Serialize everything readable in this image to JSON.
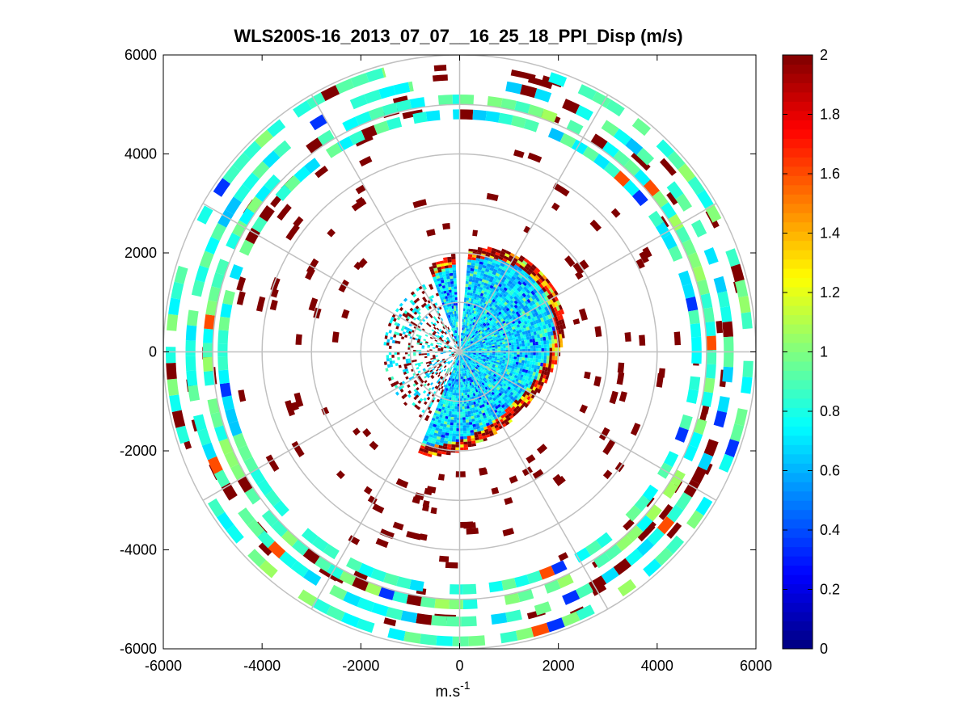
{
  "chart_data": {
    "type": "heatmap",
    "subtype": "polar-ppi",
    "title": "WLS200S-16_2013_07_07__16_25_18_PPI_Disp (m/s)",
    "xlabel": "m.s",
    "xlabel_superscript": "-1",
    "ylabel": "",
    "xlim": [
      -6000,
      6000
    ],
    "ylim": [
      -6000,
      6000
    ],
    "x_ticks": [
      -6000,
      -4000,
      -2000,
      0,
      2000,
      4000,
      6000
    ],
    "y_ticks": [
      -6000,
      -4000,
      -2000,
      0,
      2000,
      4000,
      6000
    ],
    "x_tick_labels": [
      "-6000",
      "-4000",
      "-2000",
      "0",
      "2000",
      "4000",
      "6000"
    ],
    "y_tick_labels": [
      "-6000",
      "-4000",
      "-2000",
      "0",
      "2000",
      "4000",
      "6000"
    ],
    "polar_grid": {
      "ring_radii": [
        1000,
        2000,
        3000,
        4000,
        5000,
        6000
      ],
      "spoke_angles_deg": [
        0,
        30,
        60,
        90,
        120,
        150,
        180,
        210,
        240,
        270,
        300,
        330
      ]
    },
    "colorbar": {
      "colormap": "jet",
      "range": [
        0,
        2
      ],
      "ticks": [
        0,
        0.2,
        0.4,
        0.6,
        0.8,
        1,
        1.2,
        1.4,
        1.6,
        1.8,
        2
      ],
      "tick_labels": [
        "0",
        "0.2",
        "0.4",
        "0.6",
        "0.8",
        "1",
        "1.2",
        "1.4",
        "1.6",
        "1.8",
        "2"
      ]
    },
    "display_range_rings": [
      {
        "r": [
          4700,
          4900
        ],
        "start_deg": 0,
        "end_deg": 360,
        "mean_value": 0.8
      },
      {
        "r": [
          5000,
          5200
        ],
        "start_deg": 0,
        "end_deg": 360,
        "mean_value": 0.9
      },
      {
        "r": [
          5350,
          5550
        ],
        "start_deg": 10,
        "end_deg": 350,
        "mean_value": 0.8
      },
      {
        "r": [
          5750,
          5950
        ],
        "start_deg": 15,
        "end_deg": 345,
        "mean_value": 0.9
      }
    ],
    "notes": "Lidar PPI scan; dense low-dispersion core (~0.5-0.8 m/s) within ~2200 m, high-dispersion (~2 m/s) edges near 2000-2500 m; data gap sector near azimuth 355-5 deg."
  }
}
